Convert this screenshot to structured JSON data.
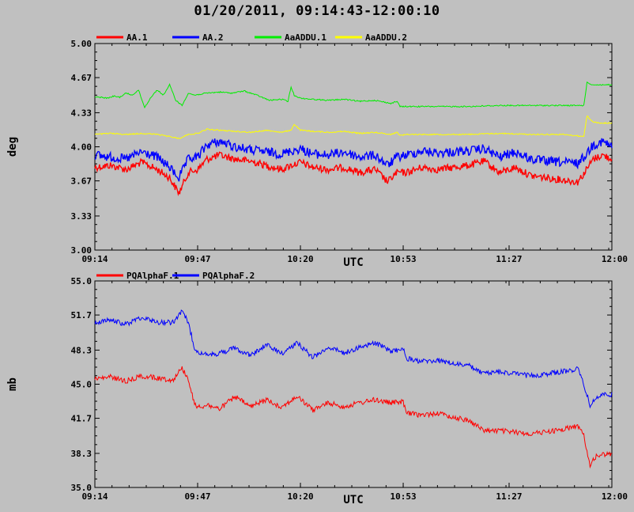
{
  "title": "01/20/2011, 09:14:43-12:00:10",
  "chart_data": [
    {
      "type": "line",
      "ylabel": "deg",
      "xlabel": "UTC",
      "ylim": [
        3.0,
        5.0
      ],
      "xlim": [
        0,
        166
      ],
      "yticks": [
        "3.00",
        "3.33",
        "3.67",
        "4.00",
        "4.33",
        "4.67",
        "5.00"
      ],
      "xticks": [
        {
          "t": 0,
          "label": "09:14"
        },
        {
          "t": 33,
          "label": "09:47"
        },
        {
          "t": 66,
          "label": "10:20"
        },
        {
          "t": 99,
          "label": "10:53"
        },
        {
          "t": 133,
          "label": "11:27"
        },
        {
          "t": 166,
          "label": "12:00"
        }
      ],
      "legend_position": "top-left",
      "series": [
        {
          "name": "AA.1",
          "color": "#ff0000",
          "noise": 0.035,
          "t": [
            0,
            5,
            10,
            15,
            20,
            24,
            27,
            30,
            33,
            36,
            40,
            45,
            50,
            55,
            60,
            63,
            66,
            70,
            75,
            80,
            85,
            90,
            94,
            97,
            100,
            105,
            110,
            115,
            120,
            125,
            130,
            135,
            140,
            145,
            150,
            155,
            157,
            160,
            163,
            166
          ],
          "values": [
            3.8,
            3.82,
            3.78,
            3.85,
            3.78,
            3.7,
            3.55,
            3.75,
            3.78,
            3.88,
            3.92,
            3.88,
            3.86,
            3.82,
            3.78,
            3.82,
            3.85,
            3.8,
            3.78,
            3.8,
            3.75,
            3.78,
            3.66,
            3.75,
            3.75,
            3.8,
            3.78,
            3.8,
            3.82,
            3.86,
            3.75,
            3.8,
            3.72,
            3.7,
            3.68,
            3.66,
            3.74,
            3.88,
            3.92,
            3.88
          ]
        },
        {
          "name": "AA.2",
          "color": "#0000ff",
          "noise": 0.045,
          "t": [
            0,
            5,
            10,
            15,
            20,
            24,
            27,
            30,
            33,
            36,
            40,
            45,
            50,
            55,
            60,
            63,
            66,
            70,
            75,
            80,
            85,
            90,
            94,
            97,
            100,
            105,
            110,
            115,
            120,
            125,
            130,
            135,
            140,
            145,
            150,
            155,
            157,
            160,
            163,
            166
          ],
          "values": [
            3.92,
            3.9,
            3.88,
            3.95,
            3.9,
            3.8,
            3.7,
            3.88,
            3.9,
            4.02,
            4.05,
            4.0,
            3.97,
            3.95,
            3.93,
            3.96,
            3.98,
            3.93,
            3.92,
            3.95,
            3.9,
            3.92,
            3.82,
            3.9,
            3.92,
            3.96,
            3.94,
            3.95,
            3.96,
            3.98,
            3.9,
            3.95,
            3.88,
            3.86,
            3.85,
            3.84,
            3.9,
            4.02,
            4.05,
            4.0
          ]
        },
        {
          "name": "AaADDU.1",
          "color": "#00ee00",
          "noise": 0.006,
          "t": [
            0,
            2,
            4,
            6,
            8,
            10,
            12,
            14,
            16,
            18,
            20,
            22,
            24,
            26,
            28,
            30,
            32,
            36,
            40,
            44,
            48,
            52,
            56,
            60,
            62,
            63,
            64,
            66,
            70,
            75,
            80,
            85,
            90,
            95,
            97,
            98,
            100,
            110,
            120,
            130,
            140,
            150,
            157,
            158,
            160,
            162,
            166
          ],
          "values": [
            4.48,
            4.48,
            4.47,
            4.49,
            4.48,
            4.52,
            4.5,
            4.55,
            4.38,
            4.48,
            4.55,
            4.5,
            4.6,
            4.45,
            4.4,
            4.52,
            4.5,
            4.52,
            4.53,
            4.52,
            4.54,
            4.5,
            4.45,
            4.46,
            4.44,
            4.58,
            4.5,
            4.47,
            4.46,
            4.45,
            4.46,
            4.44,
            4.45,
            4.42,
            4.44,
            4.39,
            4.39,
            4.39,
            4.39,
            4.4,
            4.4,
            4.4,
            4.4,
            4.62,
            4.6,
            4.6,
            4.6
          ]
        },
        {
          "name": "AaADDU.2",
          "color": "#ffff00",
          "noise": 0.006,
          "t": [
            0,
            5,
            10,
            15,
            20,
            24,
            27,
            30,
            33,
            36,
            40,
            45,
            50,
            55,
            60,
            63,
            64,
            66,
            70,
            75,
            80,
            85,
            90,
            95,
            97,
            98,
            100,
            110,
            120,
            130,
            140,
            150,
            157,
            158,
            160,
            162,
            166
          ],
          "values": [
            4.12,
            4.13,
            4.12,
            4.13,
            4.12,
            4.1,
            4.08,
            4.12,
            4.13,
            4.17,
            4.16,
            4.15,
            4.14,
            4.16,
            4.14,
            4.16,
            4.22,
            4.16,
            4.15,
            4.14,
            4.15,
            4.13,
            4.14,
            4.12,
            4.14,
            4.11,
            4.12,
            4.12,
            4.12,
            4.13,
            4.12,
            4.12,
            4.1,
            4.3,
            4.24,
            4.23,
            4.23
          ]
        }
      ]
    },
    {
      "type": "line",
      "ylabel": "mb",
      "xlabel": "UTC",
      "ylim": [
        35.0,
        55.0
      ],
      "xlim": [
        0,
        166
      ],
      "yticks": [
        "35.0",
        "38.3",
        "41.7",
        "45.0",
        "48.3",
        "51.7",
        "55.0"
      ],
      "xticks": [
        {
          "t": 0,
          "label": "09:14"
        },
        {
          "t": 33,
          "label": "09:47"
        },
        {
          "t": 66,
          "label": "10:20"
        },
        {
          "t": 99,
          "label": "10:53"
        },
        {
          "t": 133,
          "label": "11:27"
        },
        {
          "t": 166,
          "label": "12:00"
        }
      ],
      "legend_position": "top-left",
      "series": [
        {
          "name": "PQAlphaF.1",
          "color": "#ff0000",
          "noise": 0.25,
          "t": [
            0,
            5,
            10,
            15,
            20,
            25,
            28,
            30,
            32,
            34,
            36,
            40,
            45,
            50,
            55,
            60,
            65,
            70,
            75,
            80,
            85,
            90,
            95,
            99,
            100,
            105,
            110,
            115,
            120,
            125,
            130,
            140,
            150,
            155,
            157,
            159,
            161,
            163,
            166
          ],
          "values": [
            45.5,
            45.7,
            45.3,
            45.8,
            45.6,
            45.4,
            46.6,
            45.5,
            43.0,
            42.8,
            43.0,
            42.6,
            43.8,
            42.8,
            43.5,
            42.8,
            43.8,
            42.5,
            43.2,
            42.8,
            43.2,
            43.5,
            43.2,
            43.3,
            42.2,
            42.0,
            42.2,
            41.8,
            41.5,
            40.5,
            40.5,
            40.2,
            40.6,
            41.0,
            40.0,
            37.2,
            38.0,
            38.2,
            38.2
          ]
        },
        {
          "name": "PQAlphaF.2",
          "color": "#0000ff",
          "noise": 0.25,
          "t": [
            0,
            5,
            10,
            15,
            20,
            25,
            28,
            30,
            32,
            34,
            36,
            40,
            45,
            50,
            55,
            60,
            65,
            70,
            75,
            80,
            85,
            90,
            95,
            99,
            100,
            105,
            110,
            115,
            120,
            125,
            130,
            140,
            150,
            155,
            157,
            159,
            161,
            163,
            166
          ],
          "values": [
            51.0,
            51.2,
            50.8,
            51.5,
            51.0,
            51.0,
            52.0,
            51.0,
            48.5,
            48.0,
            47.8,
            48.0,
            48.5,
            47.8,
            48.8,
            48.0,
            49.0,
            47.6,
            48.6,
            48.0,
            48.6,
            49.0,
            48.2,
            48.4,
            47.5,
            47.2,
            47.3,
            47.0,
            46.8,
            46.0,
            46.2,
            45.8,
            46.2,
            46.5,
            45.0,
            42.9,
            43.7,
            44.0,
            44.0
          ]
        }
      ]
    }
  ]
}
